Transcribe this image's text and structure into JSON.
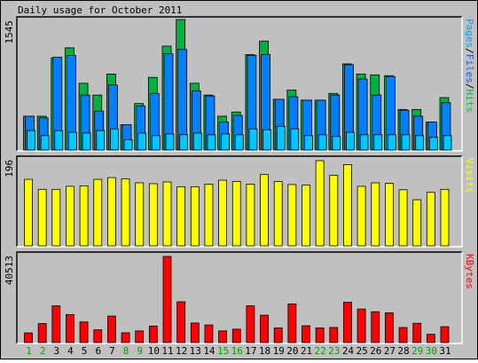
{
  "chart_data": {
    "type": "bar",
    "title": "Daily usage for October 2011",
    "categories": [
      "1",
      "2",
      "3",
      "4",
      "5",
      "6",
      "7",
      "8",
      "9",
      "10",
      "11",
      "12",
      "13",
      "14",
      "15",
      "16",
      "17",
      "18",
      "19",
      "20",
      "21",
      "22",
      "23",
      "24",
      "25",
      "26",
      "27",
      "28",
      "29",
      "30",
      "31"
    ],
    "weekend_days": [
      "1",
      "2",
      "8",
      "9",
      "15",
      "16",
      "22",
      "23",
      "29",
      "30"
    ],
    "panels": [
      {
        "name": "usage",
        "ylabel": "1545",
        "legend": [
          {
            "label": "Pages",
            "color": "#00a0ff"
          },
          {
            "label": "Files",
            "color": "#0060ff"
          },
          {
            "label": "Hits",
            "color": "#00c040"
          }
        ],
        "ylim": [
          0,
          1545
        ],
        "series": [
          {
            "name": "Hits",
            "color": "#00b040",
            "values": [
              400,
              400,
              1090,
              1210,
              790,
              650,
              900,
              300,
              550,
              860,
              1230,
              1545,
              790,
              650,
              400,
              450,
              1130,
              1290,
              600,
              710,
              590,
              590,
              670,
              1020,
              900,
              890,
              880,
              480,
              480,
              330,
              620
            ]
          },
          {
            "name": "Files",
            "color": "#0080ff",
            "values": [
              400,
              380,
              1100,
              1120,
              650,
              460,
              770,
              300,
              520,
              670,
              1140,
              1190,
              700,
              640,
              330,
              410,
              1120,
              1130,
              600,
              630,
              590,
              590,
              650,
              1010,
              840,
              650,
              870,
              470,
              400,
              330,
              560
            ]
          },
          {
            "name": "Pages",
            "color": "#00c8ff",
            "values": [
              230,
              170,
              230,
              210,
              200,
              230,
              250,
              120,
              200,
              170,
              190,
              180,
              200,
              180,
              190,
              180,
              250,
              240,
              280,
              250,
              170,
              180,
              160,
              210,
              180,
              180,
              180,
              180,
              170,
              150,
              170
            ]
          }
        ]
      },
      {
        "name": "visits",
        "ylabel": "196",
        "legend": [
          {
            "label": "Visits",
            "color": "#ffff00"
          }
        ],
        "ylim": [
          0,
          196
        ],
        "series": [
          {
            "name": "Visits",
            "color": "#ffff00",
            "values": [
              153,
              130,
              130,
              137,
              138,
              153,
              157,
              154,
              145,
              143,
              147,
              136,
              136,
              142,
              151,
              148,
              142,
              164,
              148,
              141,
              140,
              196,
              162,
              187,
              137,
              145,
              144,
              129,
              106,
              123,
              130
            ]
          }
        ]
      },
      {
        "name": "kbytes",
        "ylabel": "40513",
        "legend": [
          {
            "label": "KBytes",
            "color": "#ff0000"
          }
        ],
        "ylim": [
          0,
          40513
        ],
        "series": [
          {
            "name": "KBytes",
            "color": "#ff0000",
            "values": [
              4550,
              8950,
              17300,
              13200,
              9700,
              6000,
              12500,
              4600,
              5500,
              7800,
              40513,
              19200,
              9200,
              8300,
              5500,
              6300,
              17300,
              12900,
              6900,
              18200,
              7900,
              6900,
              7100,
              19000,
              15800,
              14500,
              14000,
              7100,
              9100,
              3900,
              7500
            ]
          }
        ]
      }
    ]
  }
}
